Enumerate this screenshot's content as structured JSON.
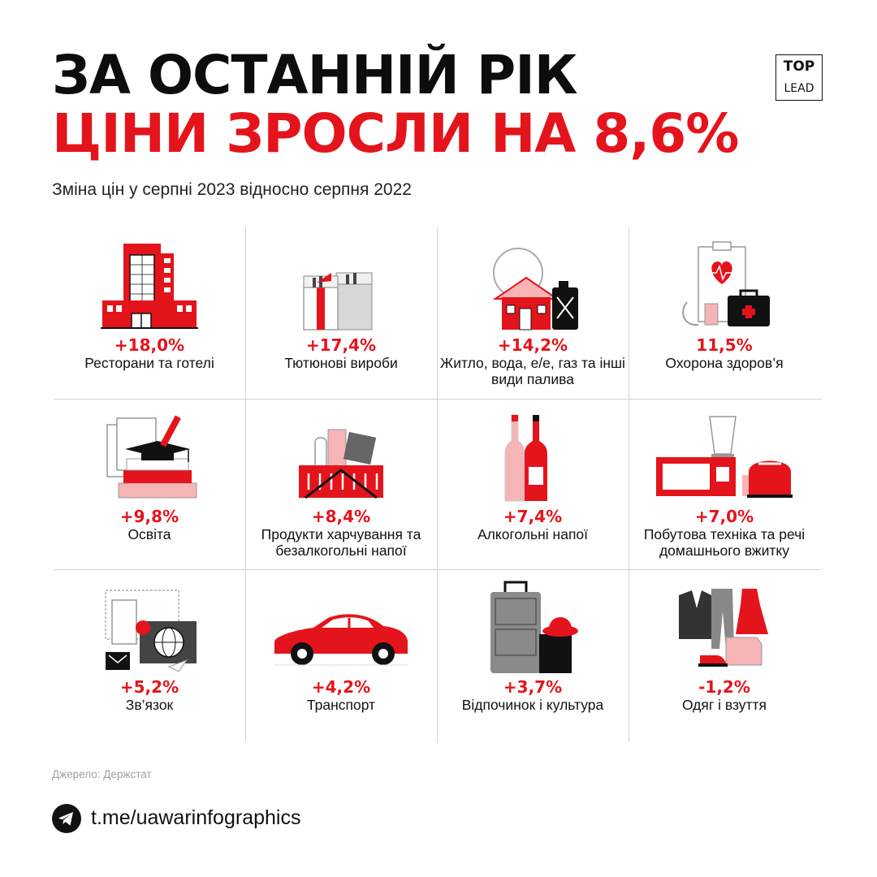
{
  "header": {
    "title_line1": "ЗА ОСТАННІЙ РІК",
    "title_line2": "ЦІНИ ЗРОСЛИ НА 8,6%",
    "subtitle": "Зміна цін у серпні 2023 відносно серпня 2022"
  },
  "logo": {
    "top": "TOP",
    "bottom": "LEAD"
  },
  "colors": {
    "accent": "#e4141c",
    "dark": "#0d0d0d",
    "grid": "#d2d2d2",
    "gray": "#a0a0a0"
  },
  "categories": [
    {
      "value": "+18,0%",
      "label": "Ресторани та готелі",
      "icon": "hotel-building-icon"
    },
    {
      "value": "+17,4%",
      "label": "Тютюнові вироби",
      "icon": "cigarette-packs-icon"
    },
    {
      "value": "+14,2%",
      "label": "Житло, вода, е/е, газ та інші види палива",
      "icon": "house-bulb-canister-icon"
    },
    {
      "value": "11,5%",
      "label": "Охорона здоров’я",
      "icon": "medical-kit-icon"
    },
    {
      "value": "+9,8%",
      "label": "Освіта",
      "icon": "books-graduation-cap-icon"
    },
    {
      "value": "+8,4%",
      "label": "Продукти харчування та безалкогольні напої",
      "icon": "grocery-basket-icon"
    },
    {
      "value": "+7,4%",
      "label": "Алкогольні напої",
      "icon": "wine-bottles-icon"
    },
    {
      "value": "+7,0%",
      "label": "Побутова техніка та речі домашнього вжитку",
      "icon": "home-appliances-icon"
    },
    {
      "value": "+5,2%",
      "label": "Зв’язок",
      "icon": "communication-devices-icon"
    },
    {
      "value": "+4,2%",
      "label": "Транспорт",
      "icon": "car-icon"
    },
    {
      "value": "+3,7%",
      "label": "Відпочинок і культура",
      "icon": "suitcase-hat-icon"
    },
    {
      "value": "-1,2%",
      "label": "Одяг і взуття",
      "icon": "clothing-shoes-icon"
    }
  ],
  "footer": {
    "source": "Джерело: Держстат",
    "link": "t.me/uawarinfographics",
    "icon": "telegram-icon"
  }
}
